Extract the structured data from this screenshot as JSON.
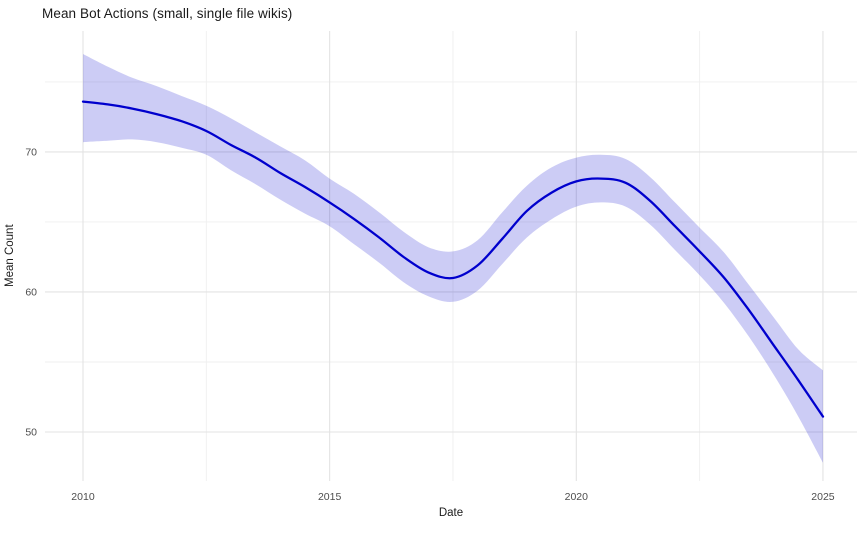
{
  "chart_data": {
    "type": "line",
    "title": "Mean Bot Actions (small, single file wikis)",
    "xlabel": "Date",
    "ylabel": "Mean Count",
    "legend": "none",
    "grid": "major+minor",
    "xlim": [
      2009.23,
      2025.69
    ],
    "ylim": [
      46.5,
      78.64
    ],
    "x_ticks": {
      "major": [
        2010,
        2015,
        2020,
        2025
      ],
      "minor": [
        2012.5,
        2017.5,
        2022.5
      ]
    },
    "y_ticks": {
      "major": [
        50,
        60,
        70
      ],
      "minor": [
        55,
        65,
        75
      ]
    },
    "x": [
      2010,
      2010.5,
      2011,
      2011.5,
      2012,
      2012.5,
      2013,
      2013.5,
      2014,
      2014.5,
      2015,
      2015.5,
      2016,
      2016.5,
      2017,
      2017.5,
      2018,
      2018.5,
      2019,
      2019.5,
      2020,
      2020.5,
      2021,
      2021.5,
      2022,
      2022.5,
      2023,
      2023.5,
      2024,
      2024.5,
      2025
    ],
    "series": [
      {
        "name": "mean_count",
        "values": [
          73.6,
          73.4,
          73.1,
          72.7,
          72.2,
          71.5,
          70.5,
          69.6,
          68.5,
          67.5,
          66.4,
          65.2,
          63.9,
          62.5,
          61.4,
          61.0,
          61.9,
          63.8,
          65.8,
          67.1,
          67.9,
          68.1,
          67.8,
          66.5,
          64.7,
          62.9,
          61.0,
          58.7,
          56.2,
          53.7,
          51.1
        ]
      },
      {
        "name": "ci_lower",
        "values": [
          70.7,
          70.8,
          70.9,
          70.7,
          70.3,
          69.8,
          68.7,
          67.7,
          66.6,
          65.6,
          64.7,
          63.4,
          62.1,
          60.7,
          59.7,
          59.3,
          60.1,
          62.0,
          63.9,
          65.2,
          66.1,
          66.4,
          66.1,
          64.8,
          63.0,
          61.2,
          59.2,
          56.8,
          54.1,
          51.1,
          47.8
        ]
      },
      {
        "name": "ci_upper",
        "values": [
          77.0,
          76.1,
          75.3,
          74.7,
          74.0,
          73.3,
          72.4,
          71.4,
          70.4,
          69.4,
          68.1,
          67.0,
          65.7,
          64.3,
          63.2,
          62.9,
          63.7,
          65.7,
          67.6,
          68.9,
          69.6,
          69.8,
          69.5,
          68.2,
          66.4,
          64.6,
          62.8,
          60.5,
          58.2,
          55.9,
          54.4
        ]
      }
    ],
    "colors": {
      "line": "#0000CD",
      "band": "rgba(0,0,205,0.2)",
      "grid_major": "#E3E3E3",
      "grid_minor": "#EFEFEF",
      "tick_text": "#4D4D4D",
      "title_text": "#1A1A1A",
      "background": "#FFFFFF"
    }
  }
}
